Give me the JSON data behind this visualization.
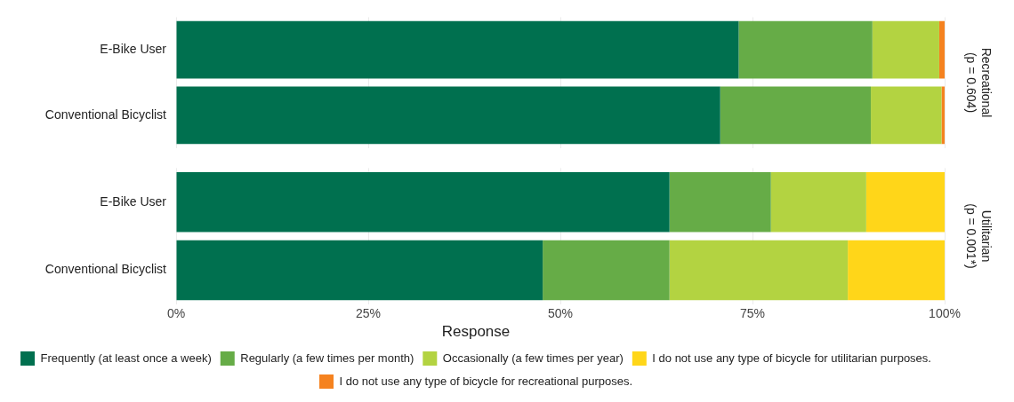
{
  "chart_data": [
    {
      "type": "bar",
      "annotations": [
        "Recreational\n(p = 0.604)"
      ],
      "orientation": "horizontal",
      "stacked": true,
      "categories": [
        "E-Bike User",
        "Conventional Bicyclist"
      ],
      "xlim": [
        0,
        100
      ],
      "xticks": [
        0,
        25,
        50,
        75,
        100
      ],
      "grid": "x",
      "tick_labels": "y",
      "series": [
        {
          "color": "#00704f",
          "values": [
            73.2,
            70.8
          ]
        },
        {
          "color": "#66ac47",
          "values": [
            17.4,
            19.6
          ]
        },
        {
          "color": "#b3d341",
          "values": [
            8.7,
            9.2
          ]
        },
        {
          "color": "#f5821f",
          "values": [
            0.7,
            0.4
          ]
        }
      ]
    },
    {
      "type": "bar",
      "annotations": [
        "Utilitarian\n(p = 0.001*)"
      ],
      "orientation": "horizontal",
      "stacked": true,
      "categories": [
        "E-Bike User",
        "Conventional Bicyclist"
      ],
      "xlim": [
        0,
        100
      ],
      "xticks": [
        {
          "value": 0,
          "label": "0%"
        },
        {
          "value": 25,
          "label": "25%"
        },
        {
          "value": 50,
          "label": "50%"
        },
        {
          "value": 75,
          "label": "75%"
        },
        {
          "value": 100,
          "label": "100%"
        }
      ],
      "grid": "x",
      "legend": "bottom",
      "legend_title": "Response",
      "series": [
        {
          "name": "Frequently (at least once a week)",
          "color": "#00704f",
          "values": [
            64.2,
            47.7
          ]
        },
        {
          "name": "Regularly (a few times per month)",
          "color": "#66ac47",
          "values": [
            13.2,
            16.5
          ]
        },
        {
          "name": "Occasionally (a few times per year)",
          "color": "#b3d341",
          "values": [
            12.4,
            23.2
          ]
        },
        {
          "name": "I do not use any type of bicycle for utilitarian purposes.",
          "color": "#ffd619",
          "values": [
            10.2,
            12.6
          ]
        },
        {
          "name": "I do not use any type of bicycle for recreational purposes.",
          "color": "#f5821f",
          "values": [
            null,
            null
          ]
        }
      ]
    }
  ]
}
